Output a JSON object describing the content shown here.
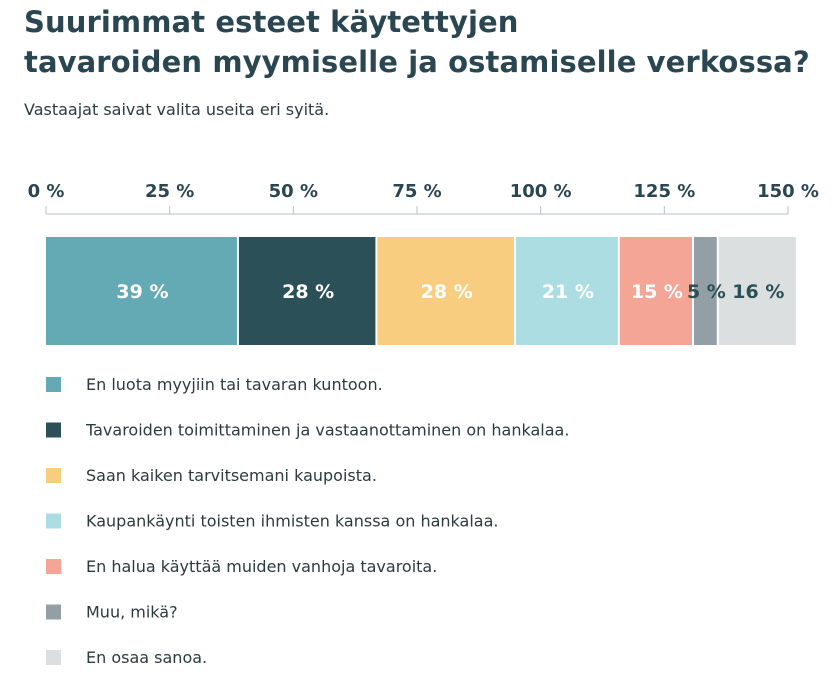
{
  "chart_data": {
    "type": "bar",
    "orientation": "horizontal-stacked",
    "title": [
      "Suurimmat esteet käytettyjen",
      "tavaroiden myymiselle ja ostamiselle verkossa?"
    ],
    "subtitle": "Vastaajat saivat valita useita eri syitä.",
    "xlim": [
      0,
      150
    ],
    "ticks": [
      "0 %",
      "25 %",
      "50 %",
      "75 %",
      "100 %",
      "125 %",
      "150 %"
    ],
    "tick_values": [
      0,
      25,
      50,
      75,
      100,
      125,
      150
    ],
    "legend_position": "bottom",
    "grid": false,
    "series": [
      {
        "name": "En luota myyjiin tai tavaran kuntoon.",
        "value": 39,
        "label": "39 %",
        "color": "#64aab5",
        "label_color": "#ffffff"
      },
      {
        "name": "Tavaroiden toimittaminen ja vastaanottaminen on hankalaa.",
        "value": 28,
        "label": "28 %",
        "color": "#2b5058",
        "label_color": "#ffffff"
      },
      {
        "name": "Saan kaiken tarvitsemani kaupoista.",
        "value": 28,
        "label": "28 %",
        "color": "#f8cd7f",
        "label_color": "#ffffff"
      },
      {
        "name": "Kaupankäynti toisten ihmisten kanssa on hankalaa.",
        "value": 21,
        "label": "21 %",
        "color": "#abdde3",
        "label_color": "#ffffff"
      },
      {
        "name": "En halua käyttää muiden vanhoja tavaroita.",
        "value": 15,
        "label": "15 %",
        "color": "#f5a595",
        "label_color": "#ffffff"
      },
      {
        "name": "Muu, mikä?",
        "value": 5,
        "label": "5 %",
        "color": "#949fa5",
        "label_color": "#2b5058"
      },
      {
        "name": "En osaa sanoa.",
        "value": 16,
        "label": "16 %",
        "color": "#dcdfe0",
        "label_color": "#2b5058"
      }
    ]
  }
}
